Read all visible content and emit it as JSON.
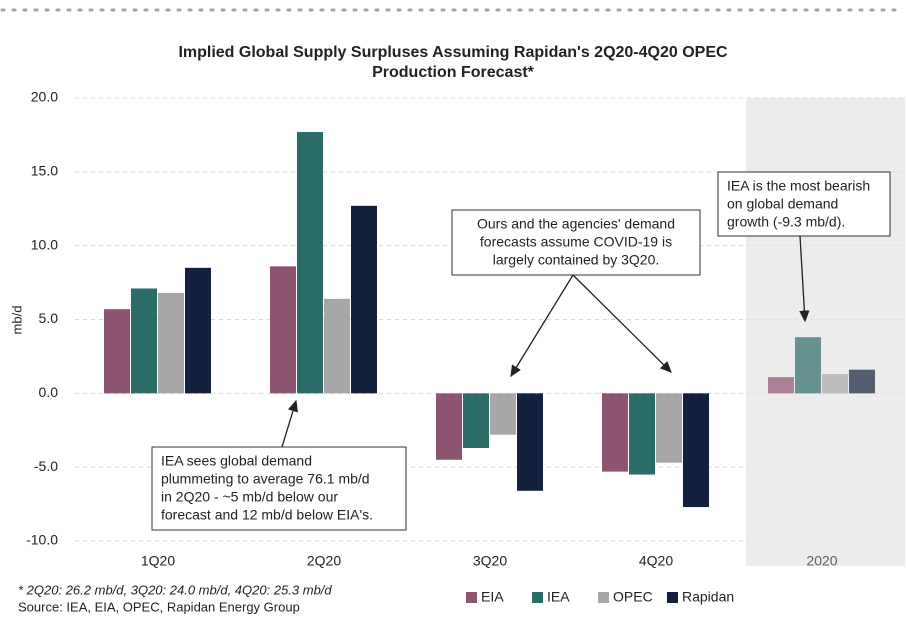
{
  "chart_data": {
    "type": "bar",
    "title": [
      "Implied Global Supply Surpluses Assuming Rapidan's 2Q20-4Q20 OPEC",
      "Production Forecast*"
    ],
    "ylabel": "mb/d",
    "categories": [
      "1Q20",
      "2Q20",
      "3Q20",
      "4Q20",
      "2020"
    ],
    "series": [
      {
        "name": "EIA",
        "color": "#8c5470",
        "values": [
          5.7,
          8.6,
          -4.5,
          -5.3,
          1.1
        ]
      },
      {
        "name": "IEA",
        "color": "#2b6b68",
        "values": [
          7.1,
          17.7,
          -3.7,
          -5.5,
          3.8
        ]
      },
      {
        "name": "OPEC",
        "color": "#a7a7a9",
        "values": [
          6.8,
          6.4,
          -2.8,
          -4.7,
          1.3
        ]
      },
      {
        "name": "Rapidan",
        "color": "#14213d",
        "values": [
          8.5,
          12.7,
          -6.6,
          -7.7,
          1.6
        ]
      }
    ],
    "ylim": [
      -10,
      20
    ],
    "yticks": [
      {
        "value": -10,
        "label": "-10.0"
      },
      {
        "value": -5,
        "label": "-5.0"
      },
      {
        "value": 0,
        "label": "0.0"
      },
      {
        "value": 5,
        "label": "5.0"
      },
      {
        "value": 10,
        "label": "10.0"
      },
      {
        "value": 15,
        "label": "15.0"
      },
      {
        "value": 20,
        "label": "20.0"
      }
    ],
    "grid": true,
    "annotations": [
      {
        "text": [
          "IEA sees global demand",
          "plummeting to average 76.1 mb/d",
          "in 2Q20 - ~5 mb/d below our",
          "forecast and 12 mb/d below EIA's."
        ]
      },
      {
        "text": [
          "Ours and the agencies' demand",
          "forecasts assume COVID-19 is",
          "largely contained by 3Q20."
        ]
      },
      {
        "text": [
          "IEA is the most bearish",
          "on global demand",
          "growth (-9.3 mb/d)."
        ]
      }
    ],
    "footnote": "* 2Q20: 26.2 mb/d, 3Q20:  24.0 mb/d, 4Q20: 25.3 mb/d",
    "source": "Source: IEA, EIA, OPEC, Rapidan Energy Group"
  }
}
